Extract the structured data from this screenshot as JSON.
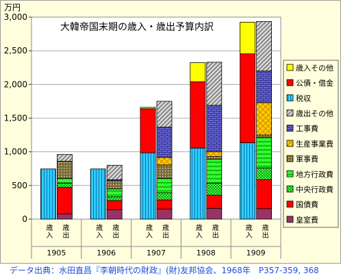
{
  "chart_data": {
    "type": "bar",
    "title": "大韓帝国末期の歳入・歳出予算内訳",
    "unit_label": "万円",
    "ylim": [
      0,
      3000
    ],
    "yticks": [
      "0",
      "500",
      "1,000",
      "1,500",
      "2,000",
      "2,500",
      "3,000"
    ],
    "ytick_values": [
      0,
      500,
      1000,
      1500,
      2000,
      2500,
      3000
    ],
    "years": [
      "1905",
      "1906",
      "1907",
      "1908",
      "1909"
    ],
    "bar_labels": [
      "歳入",
      "歳出"
    ],
    "legend_position": "right",
    "series": [
      {
        "name": "歳入その他",
        "kind": "revenue",
        "color": "#ffff00",
        "pattern": "solid"
      },
      {
        "name": "公債・借金",
        "kind": "revenue",
        "color": "#ff0000",
        "pattern": "solid"
      },
      {
        "name": "税収",
        "kind": "revenue",
        "color": "#33ccff",
        "pattern": "vlines"
      },
      {
        "name": "歳出その他",
        "kind": "expenditure",
        "color": "#b3b3b3",
        "pattern": "diag"
      },
      {
        "name": "工事費",
        "kind": "expenditure",
        "color": "#6666cc",
        "pattern": "bricks"
      },
      {
        "name": "生産事業費",
        "kind": "expenditure",
        "color": "#ffcc00",
        "pattern": "cross"
      },
      {
        "name": "軍事費",
        "kind": "expenditure",
        "color": "#7a6a3a",
        "pattern": "dots"
      },
      {
        "name": "地方行政費",
        "kind": "expenditure",
        "color": "#33ff33",
        "pattern": "zigzag"
      },
      {
        "name": "中央行政費",
        "kind": "expenditure",
        "color": "#00aa00",
        "pattern": "checker"
      },
      {
        "name": "国債費",
        "kind": "expenditure",
        "color": "#ff0000",
        "pattern": "solid"
      },
      {
        "name": "皇室費",
        "kind": "expenditure",
        "color": "#993366",
        "pattern": "solid"
      }
    ],
    "revenue": [
      {
        "year": "1905",
        "税収": 745,
        "公債・借金": 0,
        "歳入その他": 0
      },
      {
        "year": "1906",
        "税収": 745,
        "公債・借金": 0,
        "歳入その他": 0
      },
      {
        "year": "1907",
        "税収": 985,
        "公債・借金": 655,
        "歳入その他": 20
      },
      {
        "year": "1908",
        "税収": 1055,
        "公債・借金": 985,
        "歳入その他": 285
      },
      {
        "year": "1909",
        "税収": 1135,
        "公債・借金": 1320,
        "歳入その他": 470
      }
    ],
    "expenditure": [
      {
        "year": "1905",
        "皇室費": 75,
        "国債費": 395,
        "中央行政費": 65,
        "地方行政費": 70,
        "軍事費": 255,
        "生産事業費": 0,
        "工事費": 0,
        "歳出その他": 100
      },
      {
        "year": "1906",
        "皇室費": 140,
        "国債費": 135,
        "中央行政費": 55,
        "地方行政費": 120,
        "軍事費": 120,
        "生産事業費": 0,
        "工事費": 15,
        "歳出その他": 215
      },
      {
        "year": "1907",
        "皇室費": 150,
        "国債費": 135,
        "中央行政費": 105,
        "地方行政費": 215,
        "軍事費": 200,
        "生産事業費": 110,
        "工事費": 450,
        "歳出その他": 385
      },
      {
        "year": "1908",
        "皇室費": 160,
        "国債費": 195,
        "中央行政費": 180,
        "地方行政費": 355,
        "軍事費": 40,
        "生産事業費": 70,
        "工事費": 690,
        "歳出その他": 640
      },
      {
        "year": "1909",
        "皇室費": 155,
        "国債費": 430,
        "中央行政費": 175,
        "地方行政費": 450,
        "軍事費": 40,
        "生産事業費": 480,
        "工事費": 470,
        "歳出その他": 735
      }
    ]
  },
  "footer": {
    "source": "データ出典：水田直昌『李朝時代の財政』(財)友邦協会、1968年　P357-359, 368"
  }
}
